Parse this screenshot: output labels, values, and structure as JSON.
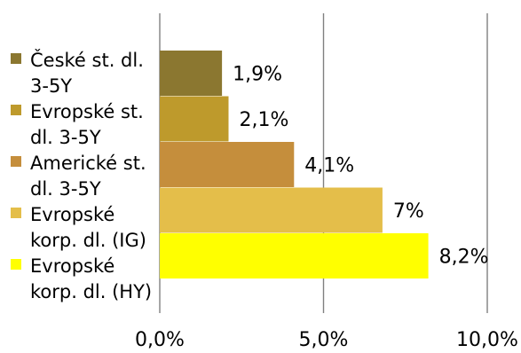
{
  "chart_data": {
    "type": "bar",
    "orientation": "horizontal",
    "title": "",
    "xlabel": "",
    "ylabel": "",
    "xlim": [
      0,
      10
    ],
    "grid": true,
    "legend_position": "left",
    "series": [
      {
        "name": [
          "České st. dl.",
          "3-5Y"
        ],
        "value": 1.9,
        "label": "1,9%",
        "color": "#8B7730"
      },
      {
        "name": [
          "Evropské st.",
          "dl. 3-5Y"
        ],
        "value": 2.1,
        "label": "2,1%",
        "color": "#BE9A2C"
      },
      {
        "name": [
          "Americké st.",
          "dl. 3-5Y"
        ],
        "value": 4.1,
        "label": "4,1%",
        "color": "#C58E3C"
      },
      {
        "name": [
          "Evropské",
          "korp. dl. (IG)"
        ],
        "value": 6.8,
        "label": "7%",
        "color": "#E4BE4A"
      },
      {
        "name": [
          "Evropské",
          "korp. dl. (HY)"
        ],
        "value": 8.2,
        "label": "8,2%",
        "color": "#FFFF00"
      }
    ],
    "ticks": [
      {
        "value": 0,
        "label": "0,0%"
      },
      {
        "value": 5,
        "label": "5,0%"
      },
      {
        "value": 10,
        "label": "10,0%"
      }
    ]
  }
}
